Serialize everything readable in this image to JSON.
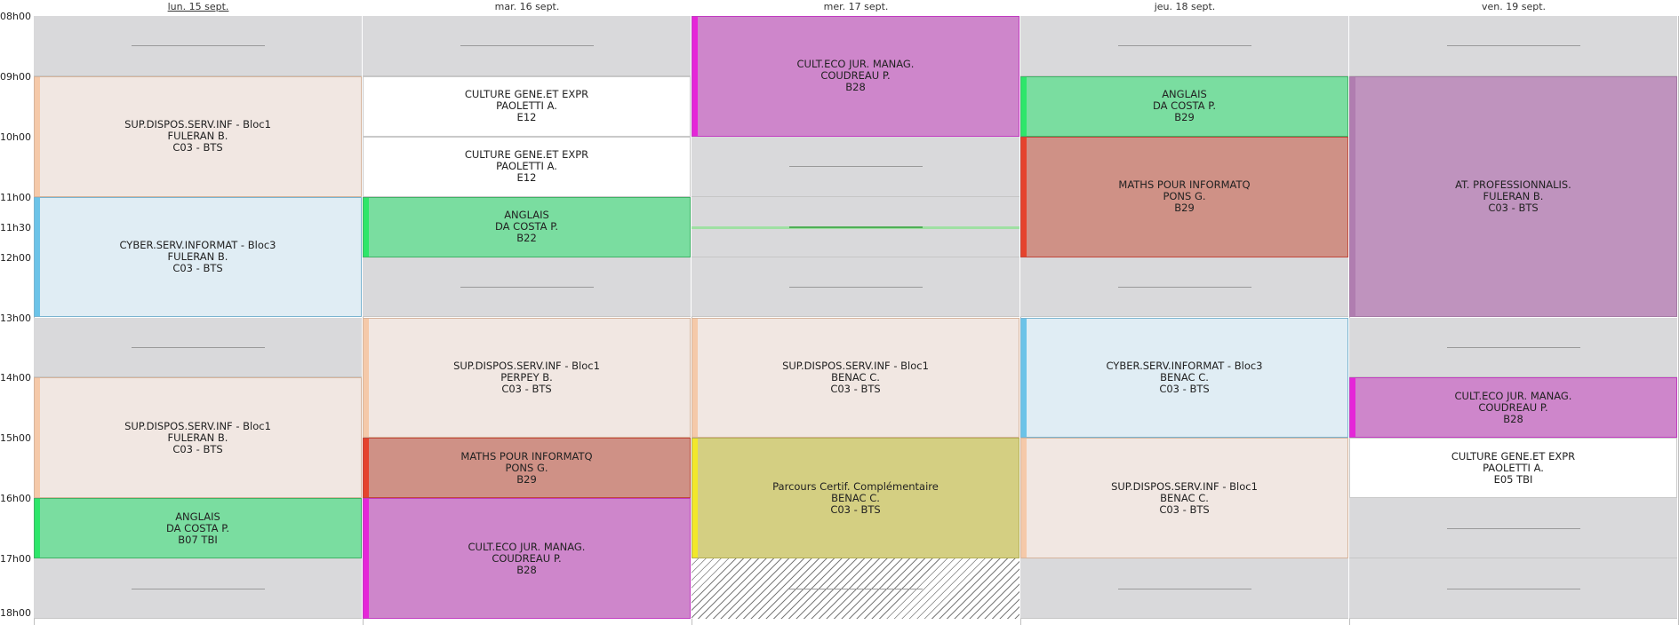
{
  "days": [
    "lun. 15 sept.",
    "mar. 16 sept.",
    "mer. 17 sept.",
    "jeu. 18 sept.",
    "ven. 19 sept."
  ],
  "today_index": 0,
  "time_labels": [
    {
      "label": "08h00",
      "t": 8
    },
    {
      "label": "09h00",
      "t": 9
    },
    {
      "label": "10h00",
      "t": 10
    },
    {
      "label": "11h00",
      "t": 11
    },
    {
      "label": "11h30",
      "t": 11.5
    },
    {
      "label": "12h00",
      "t": 12
    },
    {
      "label": "13h00",
      "t": 13
    },
    {
      "label": "14h00",
      "t": 14
    },
    {
      "label": "15h00",
      "t": 15
    },
    {
      "label": "16h00",
      "t": 16
    },
    {
      "label": "17h00",
      "t": 17
    },
    {
      "label": "18h00",
      "t": 18
    }
  ],
  "free_slots": [
    {
      "day": 0,
      "start": 8,
      "end": 9
    },
    {
      "day": 0,
      "start": 13,
      "end": 14
    },
    {
      "day": 0,
      "start": 17,
      "end": 18
    },
    {
      "day": 1,
      "start": 8,
      "end": 9
    },
    {
      "day": 1,
      "start": 12,
      "end": 13
    },
    {
      "day": 2,
      "start": 10,
      "end": 11
    },
    {
      "day": 2,
      "start": 11,
      "end": 12
    },
    {
      "day": 2,
      "start": 12,
      "end": 13
    },
    {
      "day": 3,
      "start": 8,
      "end": 9
    },
    {
      "day": 3,
      "start": 12,
      "end": 13
    },
    {
      "day": 3,
      "start": 17,
      "end": 18
    },
    {
      "day": 4,
      "start": 8,
      "end": 9
    },
    {
      "day": 4,
      "start": 13,
      "end": 14
    },
    {
      "day": 4,
      "start": 16,
      "end": 17
    },
    {
      "day": 4,
      "start": 17,
      "end": 18
    }
  ],
  "hatched_slots": [
    {
      "day": 2,
      "start": 17,
      "end": 18
    }
  ],
  "highlight_lines": [
    {
      "day": 2,
      "t": 11.5
    }
  ],
  "lessons": [
    {
      "day": 0,
      "start": 9,
      "end": 11,
      "subject": "SUP.DISPOS.SERV.INF - Bloc1",
      "teacher": "FULERAN B.",
      "room": "C03 - BTS",
      "bg": "#f1e7e2",
      "bar": "#f5c9a9",
      "border": "#d6b49c"
    },
    {
      "day": 0,
      "start": 11,
      "end": 13,
      "subject": "CYBER.SERV.INFORMAT - Bloc3",
      "teacher": "FULERAN B.",
      "room": "C03 - BTS",
      "bg": "#e0edf4",
      "bar": "#6cc3e8",
      "border": "#7ab4d0"
    },
    {
      "day": 0,
      "start": 14,
      "end": 16,
      "subject": "SUP.DISPOS.SERV.INF - Bloc1",
      "teacher": "FULERAN B.",
      "room": "C03 - BTS",
      "bg": "#f1e7e2",
      "bar": "#f5c9a9",
      "border": "#d6b49c"
    },
    {
      "day": 0,
      "start": 16,
      "end": 17,
      "subject": "ANGLAIS",
      "teacher": "DA COSTA P.",
      "room": "B07 TBI",
      "bg": "#7adda0",
      "bar": "#2ee66a",
      "border": "#3fb266"
    },
    {
      "day": 1,
      "start": 9,
      "end": 10,
      "subject": "CULTURE GENE.ET EXPR",
      "teacher": "PAOLETTI A.",
      "room": "E12",
      "bg": "#ffffff",
      "bar": "#ffffff",
      "border": "#c9c9c9"
    },
    {
      "day": 1,
      "start": 10,
      "end": 11,
      "subject": "CULTURE GENE.ET EXPR",
      "teacher": "PAOLETTI A.",
      "room": "E12",
      "bg": "#ffffff",
      "bar": "#ffffff",
      "border": "#c9c9c9"
    },
    {
      "day": 1,
      "start": 11,
      "end": 12,
      "subject": "ANGLAIS",
      "teacher": "DA COSTA P.",
      "room": "B22",
      "bg": "#7adda0",
      "bar": "#2ee66a",
      "border": "#3fb266"
    },
    {
      "day": 1,
      "start": 13,
      "end": 15,
      "subject": "SUP.DISPOS.SERV.INF - Bloc1",
      "teacher": "PERPEY B.",
      "room": "C03 - BTS",
      "bg": "#f1e7e2",
      "bar": "#f5c9a9",
      "border": "#d6b49c"
    },
    {
      "day": 1,
      "start": 15,
      "end": 16,
      "subject": "MATHS POUR INFORMATQ",
      "teacher": "PONS G.",
      "room": "B29",
      "bg": "#cf9186",
      "bar": "#e5432d",
      "border": "#c0463a"
    },
    {
      "day": 1,
      "start": 16,
      "end": 18,
      "subject": "CULT.ECO JUR. MANAG.",
      "teacher": "COUDREAU P.",
      "room": "B28",
      "bg": "#ce86cb",
      "bar": "#e526d8",
      "border": "#c13cc0"
    },
    {
      "day": 2,
      "start": 8,
      "end": 10,
      "subject": "CULT.ECO JUR. MANAG.",
      "teacher": "COUDREAU P.",
      "room": "B28",
      "bg": "#ce86cb",
      "bar": "#e526d8",
      "border": "#c13cc0"
    },
    {
      "day": 2,
      "start": 13,
      "end": 15,
      "subject": "SUP.DISPOS.SERV.INF - Bloc1",
      "teacher": "BENAC C.",
      "room": "C03 - BTS",
      "bg": "#f1e7e2",
      "bar": "#f5c9a9",
      "border": "#d6b49c"
    },
    {
      "day": 2,
      "start": 15,
      "end": 17,
      "subject": "Parcours Certif. Complémentaire",
      "teacher": "BENAC C.",
      "room": "C03 - BTS",
      "bg": "#d4cf82",
      "bar": "#f2e72a",
      "border": "#b3ae55"
    },
    {
      "day": 3,
      "start": 9,
      "end": 10,
      "subject": "ANGLAIS",
      "teacher": "DA COSTA P.",
      "room": "B29",
      "bg": "#7adda0",
      "bar": "#2ee66a",
      "border": "#3fb266"
    },
    {
      "day": 3,
      "start": 10,
      "end": 12,
      "subject": "MATHS POUR INFORMATQ",
      "teacher": "PONS G.",
      "room": "B29",
      "bg": "#cf9186",
      "bar": "#e5432d",
      "border": "#c0463a"
    },
    {
      "day": 3,
      "start": 13,
      "end": 15,
      "subject": "CYBER.SERV.INFORMAT - Bloc3",
      "teacher": "BENAC C.",
      "room": "C03 - BTS",
      "bg": "#e0edf4",
      "bar": "#6cc3e8",
      "border": "#7ab4d0"
    },
    {
      "day": 3,
      "start": 15,
      "end": 17,
      "subject": "SUP.DISPOS.SERV.INF - Bloc1",
      "teacher": "BENAC C.",
      "room": "C03 - BTS",
      "bg": "#f1e7e2",
      "bar": "#f5c9a9",
      "border": "#d6b49c"
    },
    {
      "day": 4,
      "start": 9,
      "end": 13,
      "subject": "AT. PROFESSIONNALIS.",
      "teacher": "FULERAN B.",
      "room": "C03 - BTS",
      "bg": "#bf93be",
      "bar": "#b07db0",
      "border": "#a57aa5"
    },
    {
      "day": 4,
      "start": 14,
      "end": 15,
      "subject": "CULT.ECO JUR. MANAG.",
      "teacher": "COUDREAU P.",
      "room": "B28",
      "bg": "#ce86cb",
      "bar": "#e526d8",
      "border": "#c13cc0"
    },
    {
      "day": 4,
      "start": 15,
      "end": 16,
      "subject": "CULTURE GENE.ET EXPR",
      "teacher": "PAOLETTI A.",
      "room": "E05 TBI",
      "bg": "#ffffff",
      "bar": "#ffffff",
      "border": "#c9c9c9"
    }
  ]
}
